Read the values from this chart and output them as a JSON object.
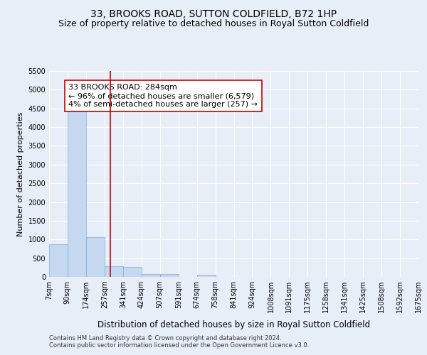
{
  "title": "33, BROOKS ROAD, SUTTON COLDFIELD, B72 1HP",
  "subtitle": "Size of property relative to detached houses in Royal Sutton Coldfield",
  "xlabel": "Distribution of detached houses by size in Royal Sutton Coldfield",
  "ylabel": "Number of detached properties",
  "footnote1": "Contains HM Land Registry data © Crown copyright and database right 2024.",
  "footnote2": "Contains public sector information licensed under the Open Government Licence v3.0.",
  "annotation_line1": "33 BROOKS ROAD: 284sqm",
  "annotation_line2": "← 96% of detached houses are smaller (6,579)",
  "annotation_line3": "4% of semi-detached houses are larger (257) →",
  "property_size": 284,
  "bin_edges": [
    7,
    90,
    174,
    257,
    341,
    424,
    507,
    591,
    674,
    758,
    841,
    924,
    1008,
    1091,
    1175,
    1258,
    1341,
    1425,
    1508,
    1592,
    1675
  ],
  "bin_labels": [
    "7sqm",
    "90sqm",
    "174sqm",
    "257sqm",
    "341sqm",
    "424sqm",
    "507sqm",
    "591sqm",
    "674sqm",
    "758sqm",
    "841sqm",
    "924sqm",
    "1008sqm",
    "1091sqm",
    "1175sqm",
    "1258sqm",
    "1341sqm",
    "1425sqm",
    "1508sqm",
    "1592sqm",
    "1675sqm"
  ],
  "bar_heights": [
    880,
    4540,
    1060,
    285,
    270,
    80,
    70,
    0,
    55,
    0,
    0,
    0,
    0,
    0,
    0,
    0,
    0,
    0,
    0,
    0
  ],
  "bar_color": "#c5d8f0",
  "bar_edge_color": "#7aaed6",
  "vline_x": 284,
  "vline_color": "#cc0000",
  "ylim": [
    0,
    5500
  ],
  "yticks": [
    0,
    500,
    1000,
    1500,
    2000,
    2500,
    3000,
    3500,
    4000,
    4500,
    5000,
    5500
  ],
  "bg_color": "#e8eef8",
  "plot_bg_color": "#e8eef8",
  "grid_color": "#ffffff",
  "title_fontsize": 10,
  "subtitle_fontsize": 9,
  "annotation_fontsize": 8,
  "tick_fontsize": 7,
  "ylabel_fontsize": 8,
  "xlabel_fontsize": 8.5
}
